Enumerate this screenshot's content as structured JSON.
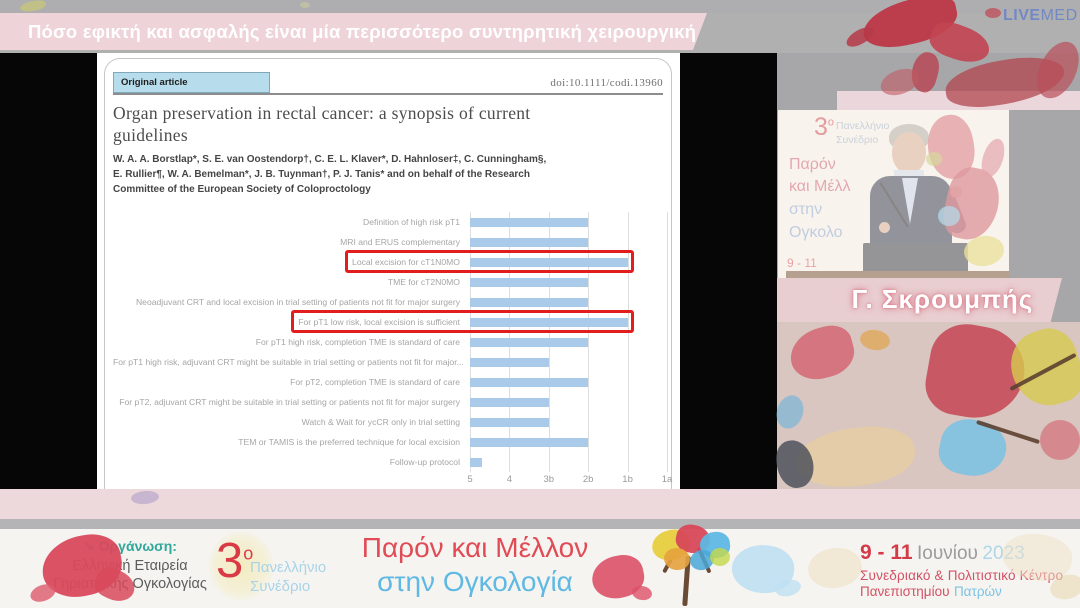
{
  "header": {
    "title": "Πόσο εφικτή και ασφαλής είναι μία περισσότερο συντηρητική χειρουργική προσέγγιση;",
    "logo_live": "LIVE",
    "logo_med": "MED"
  },
  "slide": {
    "article_type_label": "Original article",
    "doi": "doi:10.1111/codi.13960",
    "title_line1": "Organ preservation in rectal cancer: a synopsis of current",
    "title_line2": "guidelines",
    "authors_line1": "W. A. A. Borstlap*, S. E. van Oostendorp†, C. E. L. Klaver*, D. Hahnloser‡, C. Cunningham§,",
    "authors_line2": "E. Rullier¶, W. A. Bemelman*, J. B. Tuynman†, P. J. Tanis* and on behalf of the Research",
    "authors_line3": "Committee of the European Society of Coloproctology"
  },
  "chart_data": {
    "type": "bar",
    "orientation": "horizontal",
    "title": "",
    "xlabel": "",
    "ylabel": "",
    "categories": [
      "Definition of high risk pT1",
      "MRI and ERUS complementary",
      "Local excision for cT1N0MO",
      "TME for cT2N0MO",
      "Neoadjuvant CRT and local excision in trial setting of patients not fit for major surgery",
      "For pT1 low risk, local excision is sufficient",
      "For pT1 high risk, completion TME is standard of care",
      "For pT1 high risk, adjuvant CRT might be suitable in trial setting or patients not fit for major...",
      "For pT2, completion TME is standard of care",
      "For pT2, adjuvant CRT might be suitable in trial setting or patients not fit for major surgery",
      "Watch & Wait for ycCR only in trial setting",
      "TEM or TAMIS is the preferred technique for local excision",
      "Follow-up protocol"
    ],
    "values": [
      3,
      3,
      4,
      3,
      3,
      4,
      3,
      2,
      3,
      2,
      2,
      3,
      0.3
    ],
    "evidence_level_reached": [
      "2b",
      "2b",
      "1b",
      "2b",
      "2b",
      "1b",
      "2b",
      "3b",
      "2b",
      "3b",
      "3b",
      "2b",
      "5"
    ],
    "x_ticks": [
      "5",
      "4",
      "3b",
      "2b",
      "1b",
      "1a"
    ],
    "xlim": [
      0,
      5
    ],
    "axis_note": "evidence level axis runs 5 (left) to 1a (right)",
    "grid": true,
    "legend": null,
    "highlighted_rows": [
      2,
      5
    ],
    "bar_color": "#a9cae9",
    "highlight_color": "#e21d1d"
  },
  "speaker": {
    "name": "Γ. Σκρουμπής",
    "backdrop": {
      "number": "3",
      "number_sup": "ο",
      "line1": "Πανελλήνιο",
      "line2": "Συνέδριο",
      "line3": "Παρόν",
      "line4": "και Μέλλ",
      "line5": "στην",
      "line6": "Ογκολο",
      "dates": "9 - 11"
    }
  },
  "footer": {
    "organizer_arrow": "↘",
    "organizer_label": "Οργάνωση:",
    "organizer_line1": "Ελληνική Εταιρεία",
    "organizer_line2": "Γηριατρικής Ογκολογίας",
    "congress_number": "3",
    "congress_number_sup": "ο",
    "congress_sub1": "Πανελλήνιο",
    "congress_sub2": "Συνέδριο",
    "title_line1": "Παρόν και Μέλλον",
    "title_line2": "στην Ογκολογία",
    "dates_range": "9 - 11",
    "dates_month": "Ιουνίου",
    "dates_year": "2023",
    "venue_line1": "Συνεδριακό & Πολιτιστικό Κέντρο",
    "venue_line2_a": "Πανεπιστημίου",
    "venue_line2_b": "Πατρών"
  },
  "colors": {
    "banner_pink": "#eed3d9",
    "brand_red": "#e14b55",
    "brand_blue": "#5fb9e2",
    "brand_teal": "#2fa89a",
    "livemed_blue": "#7289c4",
    "bar_blue": "#a9cae9",
    "highlight_red": "#e21d1d"
  }
}
